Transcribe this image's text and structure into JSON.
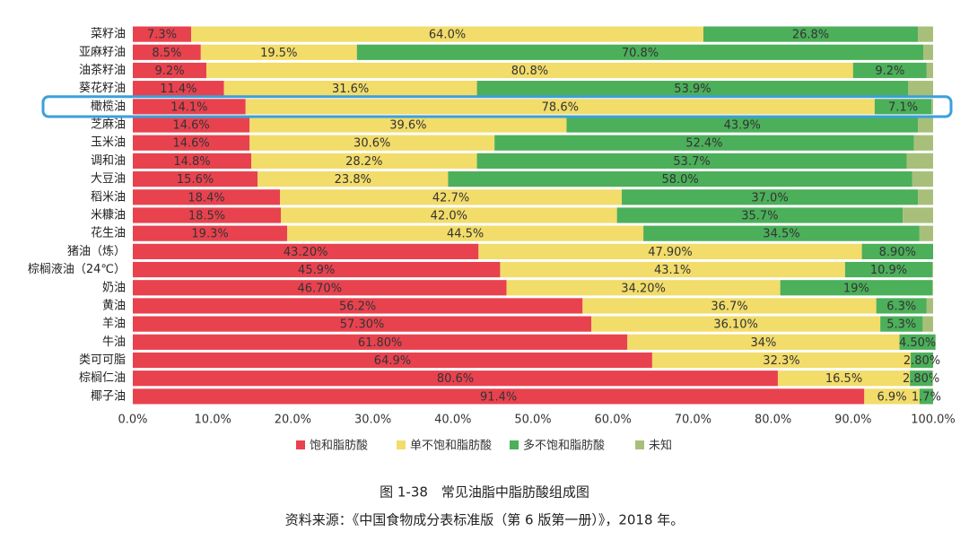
{
  "chart_data": {
    "type": "stacked-barh",
    "title": "图 1-38　常见油脂中脂肪酸组成图",
    "source": "资料来源：《中国食物成分表标准版（第 6 版第一册）》，2018 年。",
    "categories": [
      "菜籽油",
      "亚麻籽油",
      "油茶籽油",
      "葵花籽油",
      "橄榄油",
      "芝麻油",
      "玉米油",
      "调和油",
      "大豆油",
      "稻米油",
      "米糠油",
      "花生油",
      "猪油（炼）",
      "棕榈液油（24℃）",
      "奶油",
      "黄油",
      "羊油",
      "牛油",
      "类可可脂",
      "棕榈仁油",
      "椰子油"
    ],
    "series": [
      {
        "name": "饱和脂肪酸",
        "color": "#e8424f",
        "values": [
          7.3,
          8.5,
          9.2,
          11.4,
          14.1,
          14.6,
          14.6,
          14.8,
          15.6,
          18.4,
          18.5,
          19.3,
          43.2,
          45.9,
          46.7,
          56.2,
          57.3,
          61.8,
          64.9,
          80.6,
          91.4
        ],
        "value_labels": [
          "7.3%",
          "8.5%",
          "9.2%",
          "11.4%",
          "14.1%",
          "14.6%",
          "14.6%",
          "14.8%",
          "15.6%",
          "18.4%",
          "18.5%",
          "19.3%",
          "43.20%",
          "45.9%",
          "46.70%",
          "56.2%",
          "57.30%",
          "61.80%",
          "64.9%",
          "80.6%",
          "91.4%"
        ]
      },
      {
        "name": "单不饱和脂肪酸",
        "color": "#f2dc6a",
        "values": [
          64.0,
          19.5,
          80.8,
          31.6,
          78.6,
          39.6,
          30.6,
          28.2,
          23.8,
          42.7,
          42.0,
          44.5,
          47.9,
          43.1,
          34.2,
          36.7,
          36.1,
          34,
          32.3,
          16.5,
          6.9
        ],
        "value_labels": [
          "64.0%",
          "19.5%",
          "80.8%",
          "31.6%",
          "78.6%",
          "39.6%",
          "30.6%",
          "28.2%",
          "23.8%",
          "42.7%",
          "42.0%",
          "44.5%",
          "47.90%",
          "43.1%",
          "34.20%",
          "36.7%",
          "36.10%",
          "34%",
          "32.3%",
          "16.5%",
          "6.9%"
        ]
      },
      {
        "name": "多不饱和脂肪酸",
        "color": "#4caf5a",
        "values": [
          26.8,
          70.8,
          9.2,
          53.9,
          7.1,
          43.9,
          52.4,
          53.7,
          58.0,
          37.0,
          35.7,
          34.5,
          8.9,
          10.9,
          19,
          6.3,
          5.3,
          4.5,
          2.8,
          2.8,
          1.7
        ],
        "value_labels": [
          "26.8%",
          "70.8%",
          "9.2%",
          "53.9%",
          "7.1%",
          "43.9%",
          "52.4%",
          "53.7%",
          "58.0%",
          "37.0%",
          "35.7%",
          "34.5%",
          "8.90%",
          "10.9%",
          "19%",
          "6.3%",
          "5.3%",
          "4.50%",
          "2.80%",
          "2.80%",
          "1.7%"
        ]
      },
      {
        "name": "未知",
        "color": "#a8bf7a",
        "values": [
          1.9,
          1.2,
          0.8,
          3.1,
          0.2,
          1.9,
          2.4,
          3.3,
          2.6,
          1.9,
          3.8,
          1.7,
          0,
          0.1,
          0.1,
          0.8,
          1.3,
          0,
          0,
          0.1,
          0
        ]
      }
    ],
    "xlim": [
      0,
      100
    ],
    "xticks": [
      {
        "value": 0,
        "label": "0.0%"
      },
      {
        "value": 10,
        "label": "10.0%"
      },
      {
        "value": 20,
        "label": "20.0%"
      },
      {
        "value": 30,
        "label": "30.0%"
      },
      {
        "value": 40,
        "label": "40.0%"
      },
      {
        "value": 50,
        "label": "50.0%"
      },
      {
        "value": 60,
        "label": "60.0%"
      },
      {
        "value": 70,
        "label": "70.0%"
      },
      {
        "value": 80,
        "label": "80.0%"
      },
      {
        "value": 90,
        "label": "90.0%"
      },
      {
        "value": 100,
        "label": "100.0%"
      }
    ],
    "grid": false,
    "legend": "bottom"
  }
}
